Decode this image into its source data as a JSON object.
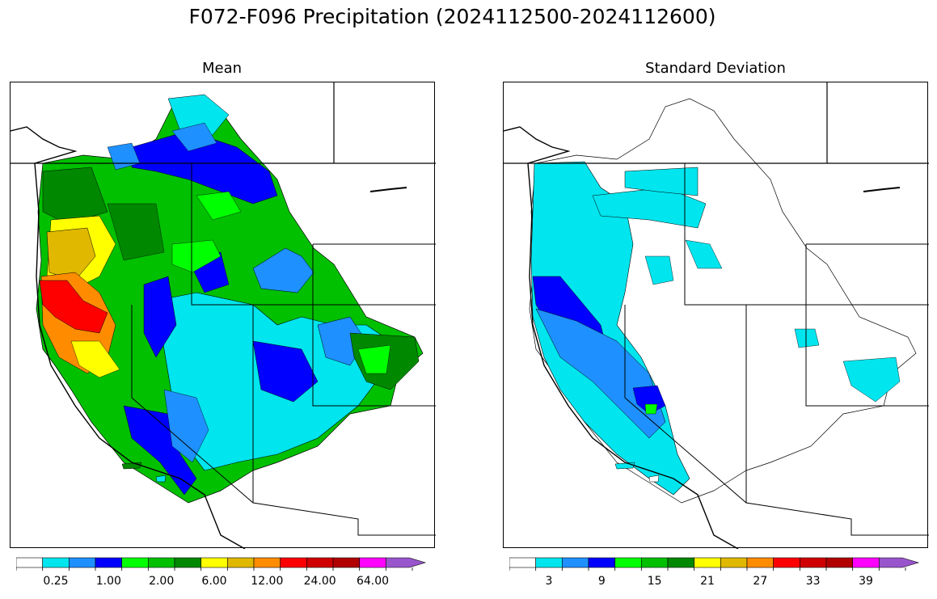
{
  "title": "F072-F096 Precipitation (2024112500-2024112600)",
  "panels": [
    {
      "name": "mean",
      "title": "Mean",
      "colorbar": {
        "colors": [
          "#ffffff",
          "#00e5ee",
          "#1e90ff",
          "#0000ff",
          "#00ff00",
          "#00c000",
          "#008800",
          "#ffff00",
          "#e0b800",
          "#ff8c00",
          "#ff0000",
          "#d00000",
          "#b00000",
          "#ff00ff",
          "#9955cc"
        ],
        "tick_labels": [
          "0.25",
          "1.00",
          "2.00",
          "6.00",
          "12.00",
          "24.00",
          "64.00"
        ],
        "tick_index": [
          1,
          3,
          5,
          7,
          9,
          11,
          13
        ]
      }
    },
    {
      "name": "stddev",
      "title": "Standard Deviation",
      "colorbar": {
        "colors": [
          "#ffffff",
          "#00e5ee",
          "#1e90ff",
          "#0000ff",
          "#00ff00",
          "#00c000",
          "#008800",
          "#ffff00",
          "#e0b800",
          "#ff8c00",
          "#ff0000",
          "#d00000",
          "#b00000",
          "#ff00ff",
          "#9955cc"
        ],
        "tick_labels": [
          "3",
          "9",
          "15",
          "21",
          "27",
          "33",
          "39"
        ],
        "tick_index": [
          1,
          3,
          5,
          7,
          9,
          11,
          13
        ]
      }
    }
  ]
}
